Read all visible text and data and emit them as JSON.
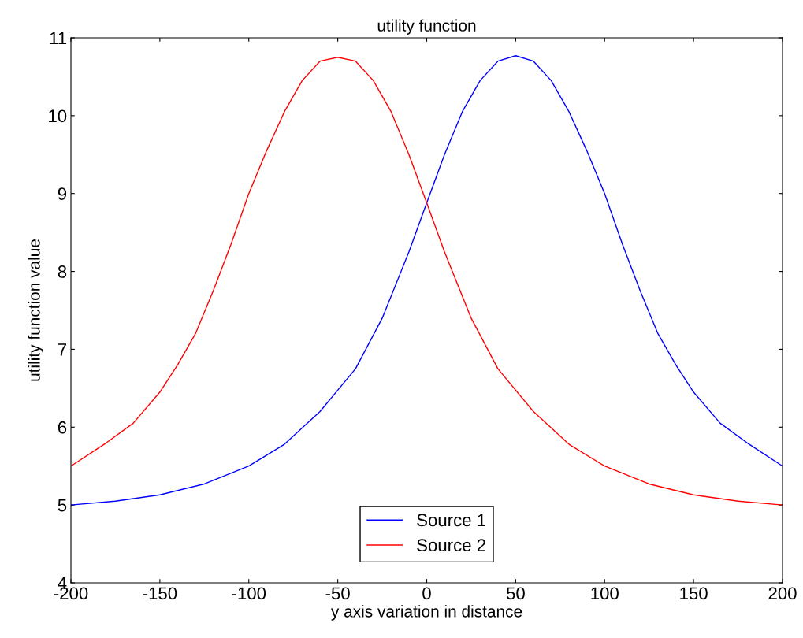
{
  "chart_data": {
    "type": "line",
    "title": "utility function",
    "xlabel": "y axis variation in distance",
    "ylabel": "utility function value",
    "x": [
      -200,
      -175,
      -150,
      -125,
      -100,
      -80,
      -60,
      -40,
      -25,
      -10,
      0,
      10,
      20,
      30,
      40,
      50,
      60,
      70,
      80,
      90,
      100,
      110,
      120,
      130,
      140,
      150,
      165,
      180,
      200
    ],
    "series": [
      {
        "name": "Source 1",
        "color": "#0000ff",
        "values": [
          5.0,
          5.05,
          5.13,
          5.27,
          5.5,
          5.78,
          6.2,
          6.75,
          7.4,
          8.25,
          8.88,
          9.5,
          10.05,
          10.45,
          10.7,
          10.77,
          10.7,
          10.45,
          10.05,
          9.55,
          9.0,
          8.35,
          7.75,
          7.2,
          6.8,
          6.45,
          6.05,
          5.8,
          5.5
        ]
      },
      {
        "name": "Source 2",
        "color": "#ff0000",
        "x": [
          -200,
          -180,
          -165,
          -150,
          -140,
          -130,
          -120,
          -110,
          -100,
          -90,
          -80,
          -70,
          -60,
          -50,
          -40,
          -30,
          -20,
          -10,
          0,
          10,
          25,
          40,
          60,
          80,
          100,
          125,
          150,
          175,
          200
        ],
        "values": [
          5.5,
          5.8,
          6.05,
          6.45,
          6.8,
          7.2,
          7.75,
          8.35,
          9.0,
          9.55,
          10.05,
          10.45,
          10.7,
          10.75,
          10.7,
          10.45,
          10.05,
          9.5,
          8.88,
          8.25,
          7.4,
          6.75,
          6.2,
          5.78,
          5.5,
          5.27,
          5.13,
          5.05,
          5.0
        ]
      }
    ],
    "xlim": [
      -200,
      200
    ],
    "ylim": [
      4,
      11
    ],
    "xticks": [
      -200,
      -150,
      -100,
      -50,
      0,
      50,
      100,
      150,
      200
    ],
    "yticks": [
      4,
      5,
      6,
      7,
      8,
      9,
      10,
      11
    ],
    "grid": false,
    "legend": "bottom",
    "line_style": "solid",
    "marker": "none"
  }
}
